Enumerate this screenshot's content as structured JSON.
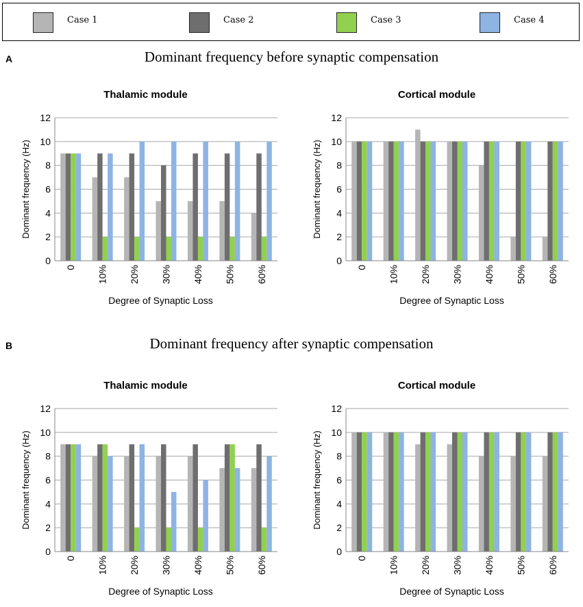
{
  "legend": {
    "items": [
      {
        "label": "Case 1",
        "color": "#b5b5b5"
      },
      {
        "label": "Case 2",
        "color": "#6e6e6e"
      },
      {
        "label": "Case 3",
        "color": "#92d050"
      },
      {
        "label": "Case 4",
        "color": "#8db4e2"
      }
    ]
  },
  "panels": [
    {
      "letter": "A",
      "title": "Dominant frequency before synaptic compensation"
    },
    {
      "letter": "B",
      "title": "Dominant frequency after synaptic compensation"
    }
  ],
  "chart_data": [
    {
      "type": "bar",
      "panel": "A",
      "title": "Thalamic module",
      "xlabel": "Degree of Synaptic Loss",
      "ylabel": "Dominant frequency (Hz)",
      "ylim": [
        0,
        12
      ],
      "yticks": [
        0,
        2,
        4,
        6,
        8,
        10,
        12
      ],
      "grid": true,
      "categories": [
        "0",
        "10%",
        "20%",
        "30%",
        "40%",
        "50%",
        "60%"
      ],
      "series": [
        {
          "name": "Case 1",
          "values": [
            9,
            7,
            7,
            5,
            5,
            5,
            4
          ]
        },
        {
          "name": "Case 2",
          "values": [
            9,
            9,
            9,
            8,
            9,
            9,
            9
          ]
        },
        {
          "name": "Case 3",
          "values": [
            9,
            2,
            2,
            2,
            2,
            2,
            2
          ]
        },
        {
          "name": "Case 4",
          "values": [
            9,
            9,
            10,
            10,
            10,
            10,
            10
          ]
        }
      ]
    },
    {
      "type": "bar",
      "panel": "A",
      "title": "Cortical module",
      "xlabel": "Degree of Synaptic Loss",
      "ylabel": "Dominant frequency (Hz)",
      "ylim": [
        0,
        12
      ],
      "yticks": [
        0,
        2,
        4,
        6,
        8,
        10,
        12
      ],
      "grid": true,
      "categories": [
        "0",
        "10%",
        "20%",
        "30%",
        "40%",
        "50%",
        "60%"
      ],
      "series": [
        {
          "name": "Case 1",
          "values": [
            10,
            10,
            11,
            10,
            8,
            2,
            2
          ]
        },
        {
          "name": "Case 2",
          "values": [
            10,
            10,
            10,
            10,
            10,
            10,
            10
          ]
        },
        {
          "name": "Case 3",
          "values": [
            10,
            10,
            10,
            10,
            10,
            10,
            10
          ]
        },
        {
          "name": "Case 4",
          "values": [
            10,
            10,
            10,
            10,
            10,
            10,
            10
          ]
        }
      ]
    },
    {
      "type": "bar",
      "panel": "B",
      "title": "Thalamic module",
      "xlabel": "Degree of Synaptic Loss",
      "ylabel": "Dominant frequency (Hz)",
      "ylim": [
        0,
        12
      ],
      "yticks": [
        0,
        2,
        4,
        6,
        8,
        10,
        12
      ],
      "grid": true,
      "categories": [
        "0",
        "10%",
        "20%",
        "30%",
        "40%",
        "50%",
        "60%"
      ],
      "series": [
        {
          "name": "Case 1",
          "values": [
            9,
            8,
            8,
            8,
            8,
            7,
            7
          ]
        },
        {
          "name": "Case 2",
          "values": [
            9,
            9,
            9,
            9,
            9,
            9,
            9
          ]
        },
        {
          "name": "Case 3",
          "values": [
            9,
            9,
            2,
            2,
            2,
            9,
            2
          ]
        },
        {
          "name": "Case 4",
          "values": [
            9,
            8,
            9,
            5,
            6,
            7,
            8
          ]
        }
      ]
    },
    {
      "type": "bar",
      "panel": "B",
      "title": "Cortical module",
      "xlabel": "Degree of Synaptic Loss",
      "ylabel": "Dominant frequency (Hz)",
      "ylim": [
        0,
        12
      ],
      "yticks": [
        0,
        2,
        4,
        6,
        8,
        10,
        12
      ],
      "grid": true,
      "categories": [
        "0",
        "10%",
        "20%",
        "30%",
        "40%",
        "50%",
        "60%"
      ],
      "series": [
        {
          "name": "Case 1",
          "values": [
            10,
            10,
            9,
            9,
            8,
            8,
            8
          ]
        },
        {
          "name": "Case 2",
          "values": [
            10,
            10,
            10,
            10,
            10,
            10,
            10
          ]
        },
        {
          "name": "Case 3",
          "values": [
            10,
            10,
            10,
            10,
            10,
            10,
            10
          ]
        },
        {
          "name": "Case 4",
          "values": [
            10,
            10,
            10,
            10,
            10,
            10,
            10
          ]
        }
      ]
    }
  ]
}
